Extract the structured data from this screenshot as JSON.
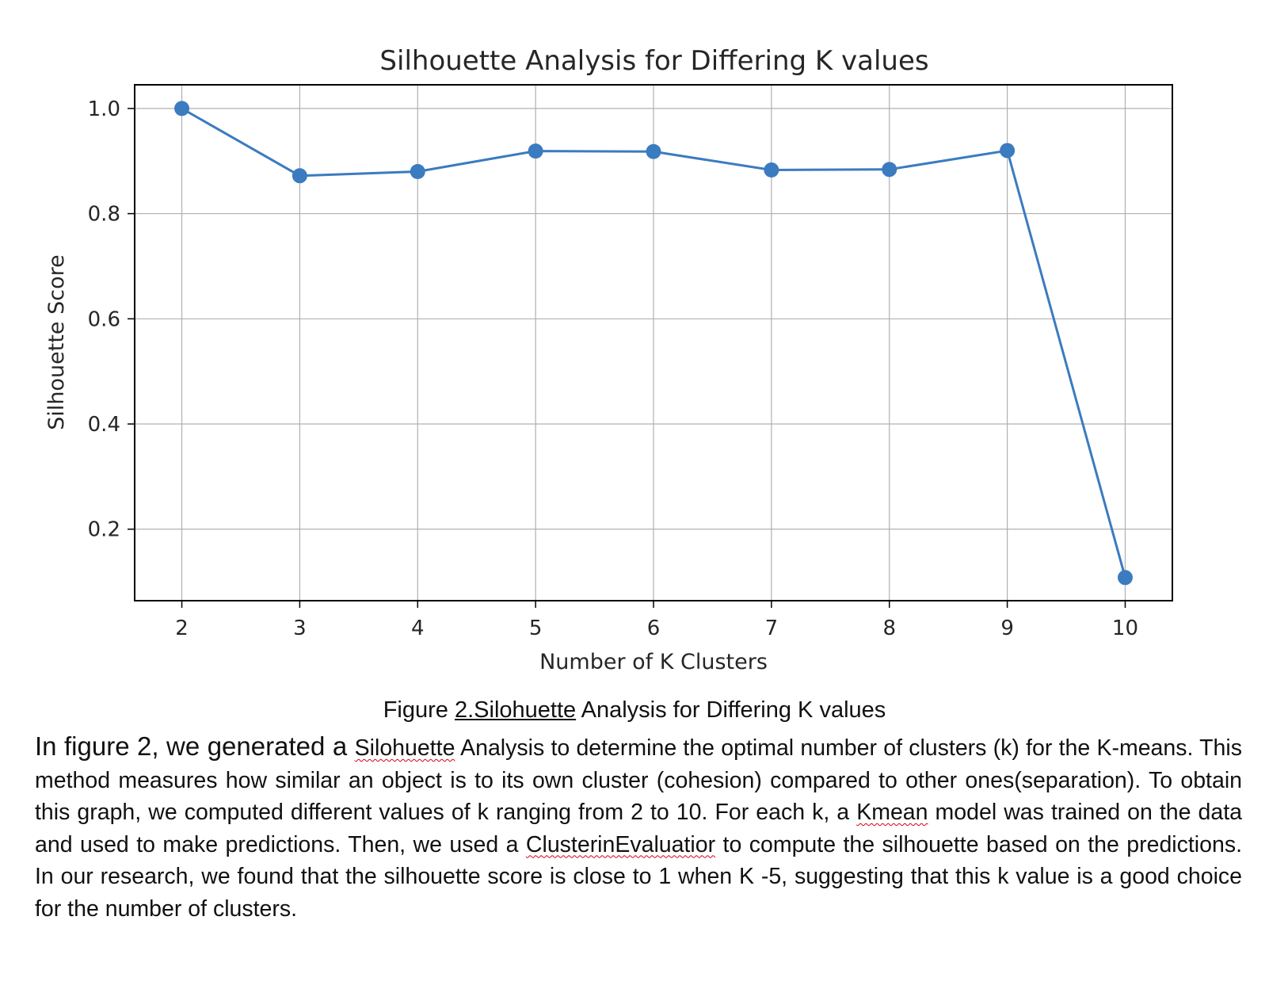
{
  "chart_data": {
    "type": "line",
    "title": "Silhouette Analysis for Differing K values",
    "xlabel": "Number of K Clusters",
    "ylabel": "Silhouette Score",
    "x": [
      2,
      3,
      4,
      5,
      6,
      7,
      8,
      9,
      10
    ],
    "series": [
      {
        "values": [
          1.0,
          0.872,
          0.88,
          0.919,
          0.918,
          0.883,
          0.884,
          0.92,
          0.108
        ]
      }
    ],
    "x_ticks": [
      "2",
      "3",
      "4",
      "5",
      "6",
      "7",
      "8",
      "9",
      "10"
    ],
    "y_ticks": [
      "0.2",
      "0.4",
      "0.6",
      "0.8",
      "1.0"
    ],
    "xlim": [
      1.6,
      10.4
    ],
    "ylim": [
      0.064,
      1.045
    ],
    "grid": true,
    "marker": "circle",
    "color": "#3b7bbf"
  },
  "caption": {
    "prefix": "Figure ",
    "link": "2.Silohuette",
    "suffix": " Analysis for Differing K values"
  },
  "paragraph": {
    "lead": "In figure 2, we generated a ",
    "w1": "Silohuette",
    "t1": " Analysis to determine the optimal number of clusters (k) for the K-means. This method measures how similar an object is to its own cluster (cohesion) compared to other ones(separation). To obtain this graph, we computed different values of k ranging from 2 to 10. For each k, a ",
    "w2": "Kmean",
    "t2": " model was trained on the data and used to make predictions. Then, we used a ",
    "w3": "ClusterinEvaluatior",
    "t3": " to compute the silhouette based on the predictions.  In our research, we found that the silhouette score is close to 1 when K -5, suggesting that this k value is a good choice for the number of clusters."
  }
}
